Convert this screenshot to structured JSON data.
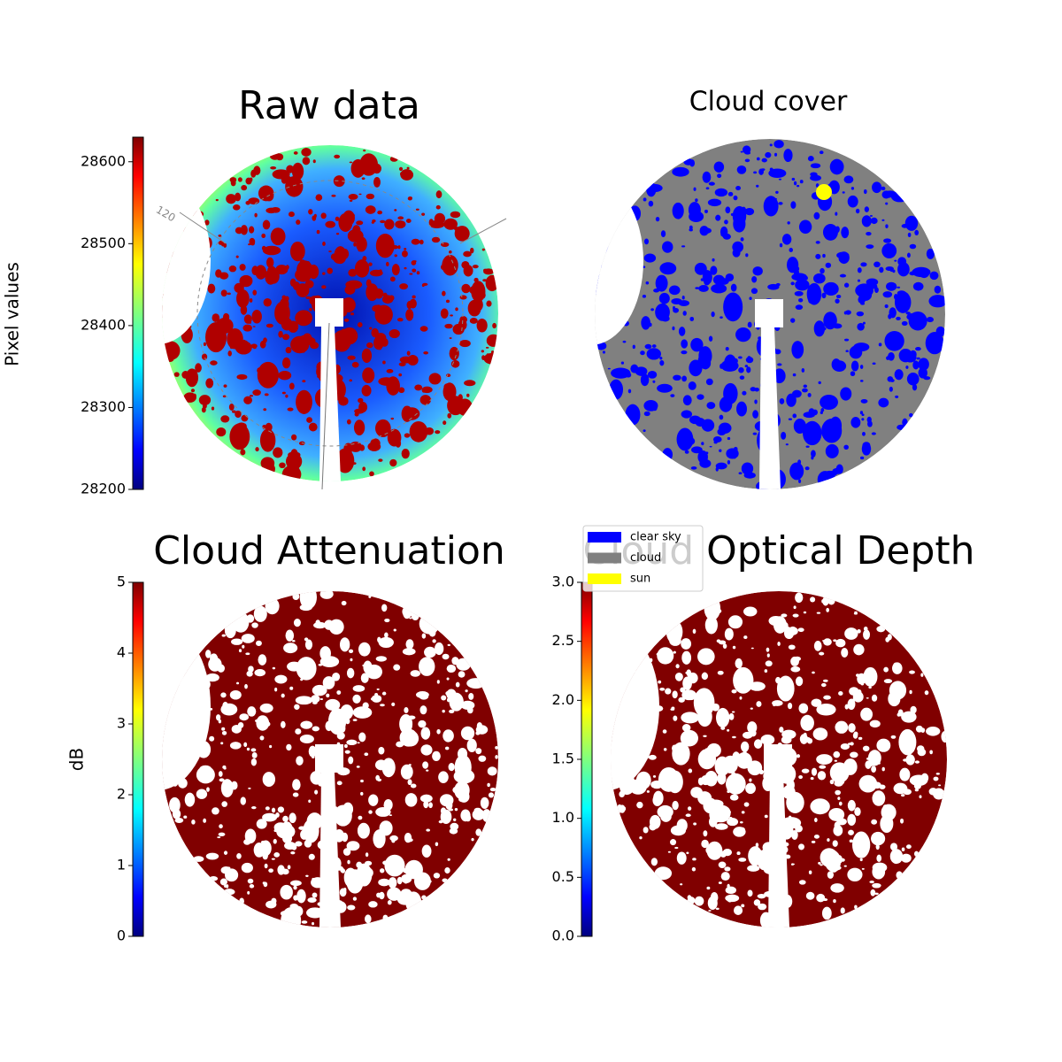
{
  "chart_data": [
    {
      "type": "image",
      "title": "Raw data",
      "colorbar_label": "Pixel values",
      "annotation": "120",
      "ylim": [
        28200,
        28630
      ],
      "yticks": [
        28200,
        28300,
        28400,
        28500,
        28600
      ],
      "colormap": "jet"
    },
    {
      "type": "image",
      "title": "Cloud cover",
      "series": [
        {
          "name": "clear sky",
          "color": "#0000ff"
        },
        {
          "name": "cloud",
          "color": "#808080"
        },
        {
          "name": "sun",
          "color": "#ffff00"
        }
      ]
    },
    {
      "type": "image",
      "title": "Cloud Attenuation",
      "colorbar_label": "dB",
      "ylim": [
        0,
        5
      ],
      "yticks": [
        0,
        1,
        2,
        3,
        4,
        5
      ],
      "colormap": "jet"
    },
    {
      "type": "image",
      "title": "Cloud Optical Depth",
      "ylim": [
        0,
        3
      ],
      "yticks": [
        {
          "value": 0,
          "label": "0.0"
        },
        {
          "value": 0.5,
          "label": "0.5"
        },
        {
          "value": 1,
          "label": "1.0"
        },
        {
          "value": 1.5,
          "label": "1.5"
        },
        {
          "value": 2,
          "label": "2.0"
        },
        {
          "value": 2.5,
          "label": "2.5"
        },
        {
          "value": 3,
          "label": "3.0"
        }
      ],
      "colormap": "jet"
    }
  ]
}
